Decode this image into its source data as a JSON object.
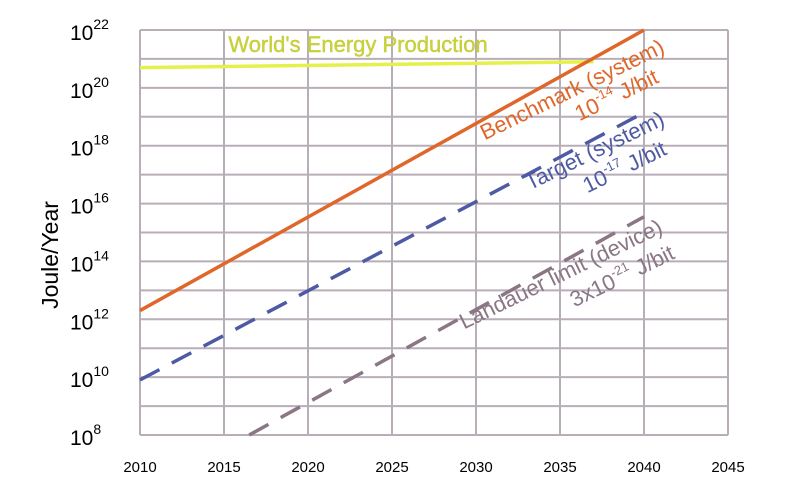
{
  "chart_data": {
    "type": "line",
    "title": "",
    "xlabel": "",
    "ylabel": "Joule/Year",
    "x_ticks": [
      "2010",
      "2015",
      "2020",
      "2025",
      "2030",
      "2035",
      "2040",
      "2045"
    ],
    "y_ticks": [
      {
        "base": "10",
        "exp": "8"
      },
      {
        "base": "10",
        "exp": "10"
      },
      {
        "base": "10",
        "exp": "12"
      },
      {
        "base": "10",
        "exp": "14"
      },
      {
        "base": "10",
        "exp": "16"
      },
      {
        "base": "10",
        "exp": "18"
      },
      {
        "base": "10",
        "exp": "20"
      },
      {
        "base": "10",
        "exp": "22"
      }
    ],
    "xlim": [
      2010,
      2045
    ],
    "ylim": [
      100000000.0,
      1e+22
    ],
    "y_scale": "log",
    "grid": true,
    "series": [
      {
        "id": "worlds-energy",
        "color": "#e6f04a",
        "style": "solid",
        "x": [
          2010,
          2037
        ],
        "y": [
          5e+20,
          8e+20
        ]
      },
      {
        "id": "benchmark",
        "color": "#e0672a",
        "style": "solid",
        "x": [
          2010,
          2040
        ],
        "y": [
          2000000000000.0,
          1e+22
        ]
      },
      {
        "id": "target",
        "color": "#4f5aa5",
        "style": "dashed",
        "x": [
          2010,
          2040
        ],
        "y": [
          8000000000.0,
          1.4e+19
        ]
      },
      {
        "id": "landauer",
        "color": "#8a7684",
        "style": "dashed",
        "x": [
          2016.5,
          2040
        ],
        "y": [
          100000000.0,
          3500000000000000.0
        ]
      }
    ],
    "annotations": [
      {
        "id": "worlds-energy-label",
        "color": "#c9d23a",
        "text": "World's Energy Production"
      },
      {
        "id": "benchmark-label-1",
        "color": "#e0672a",
        "text": "Benchmark (system)"
      },
      {
        "id": "benchmark-label-2",
        "color": "#e0672a",
        "base": "10",
        "exp": "-14",
        "suffix": " J/bit"
      },
      {
        "id": "target-label-1",
        "color": "#4f5aa5",
        "text": "Target (system)"
      },
      {
        "id": "target-label-2",
        "color": "#4f5aa5",
        "base": "10",
        "exp": "-17",
        "suffix": " J/bit"
      },
      {
        "id": "landauer-label-1",
        "color": "#8a7684",
        "text": "Landauer limit (device)"
      },
      {
        "id": "landauer-label-2",
        "color": "#8a7684",
        "base": "3x10",
        "exp": "-21",
        "suffix": " J/bit"
      }
    ]
  }
}
